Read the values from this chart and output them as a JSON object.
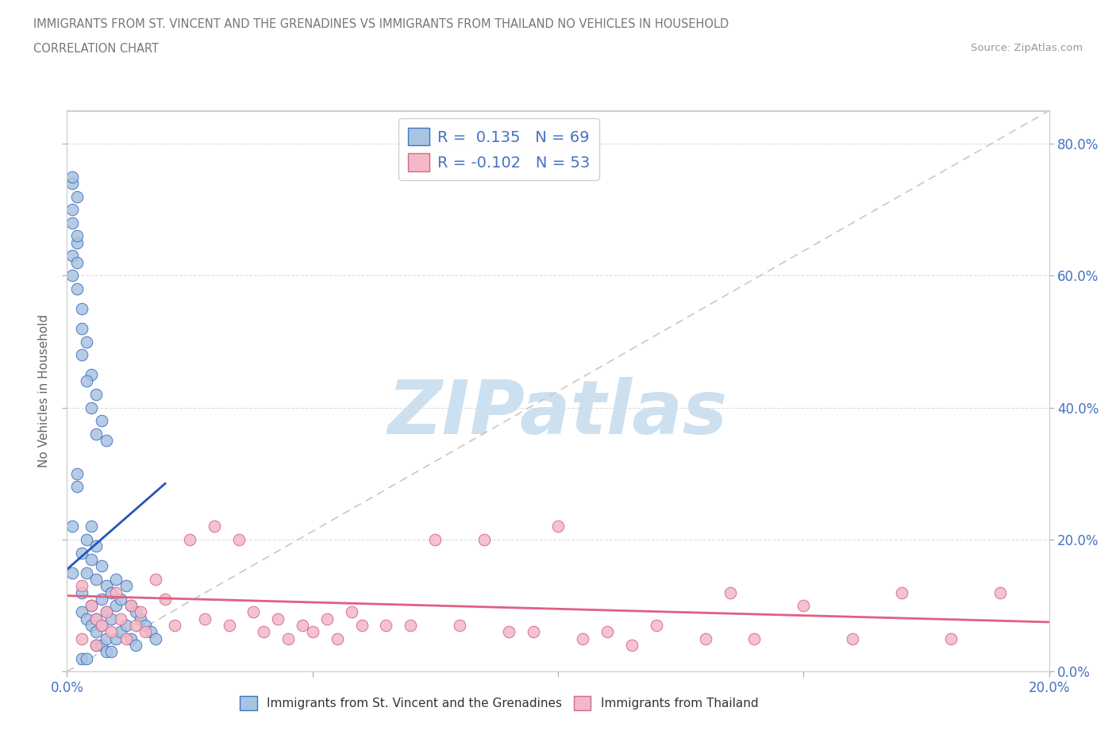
{
  "title_line1": "IMMIGRANTS FROM ST. VINCENT AND THE GRENADINES VS IMMIGRANTS FROM THAILAND NO VEHICLES IN HOUSEHOLD",
  "title_line2": "CORRELATION CHART",
  "source_text": "Source: ZipAtlas.com",
  "ylabel": "No Vehicles in Household",
  "x_min": 0.0,
  "x_max": 0.2,
  "y_min": 0.0,
  "y_max": 0.85,
  "x_ticks": [
    0.0,
    0.05,
    0.1,
    0.15,
    0.2
  ],
  "x_tick_labels": [
    "0.0%",
    "",
    "",
    "",
    "20.0%"
  ],
  "y_ticks": [
    0.0,
    0.2,
    0.4,
    0.6,
    0.8
  ],
  "y_tick_labels": [
    "0.0%",
    "20.0%",
    "40.0%",
    "60.0%",
    "80.0%"
  ],
  "blue_color": "#a8c4e0",
  "blue_edge_color": "#4472c4",
  "pink_color": "#f4b8c8",
  "pink_edge_color": "#d4688a",
  "blue_line_color": "#2255bb",
  "pink_line_color": "#e06080",
  "diagonal_color": "#c8c8c8",
  "R_blue": 0.135,
  "N_blue": 69,
  "R_pink": -0.102,
  "N_pink": 53,
  "watermark_text": "ZIPatlas",
  "watermark_color": "#cce0f0",
  "blue_line_x0": 0.0,
  "blue_line_y0": 0.155,
  "blue_line_x1": 0.02,
  "blue_line_y1": 0.285,
  "pink_line_x0": 0.0,
  "pink_line_y0": 0.115,
  "pink_line_x1": 0.2,
  "pink_line_y1": 0.075,
  "blue_scatter_x": [
    0.001,
    0.002,
    0.002,
    0.003,
    0.003,
    0.003,
    0.004,
    0.004,
    0.004,
    0.005,
    0.005,
    0.005,
    0.005,
    0.006,
    0.006,
    0.006,
    0.006,
    0.006,
    0.007,
    0.007,
    0.007,
    0.007,
    0.008,
    0.008,
    0.008,
    0.008,
    0.009,
    0.009,
    0.009,
    0.01,
    0.01,
    0.01,
    0.011,
    0.011,
    0.012,
    0.012,
    0.013,
    0.013,
    0.014,
    0.014,
    0.015,
    0.016,
    0.017,
    0.018,
    0.001,
    0.002,
    0.003,
    0.004,
    0.005,
    0.006,
    0.007,
    0.008,
    0.003,
    0.004,
    0.005,
    0.006,
    0.001,
    0.002,
    0.003,
    0.004,
    0.001,
    0.002,
    0.003,
    0.001,
    0.002,
    0.001,
    0.002,
    0.001,
    0.001
  ],
  "blue_scatter_y": [
    0.68,
    0.72,
    0.65,
    0.12,
    0.18,
    0.09,
    0.15,
    0.2,
    0.08,
    0.22,
    0.17,
    0.1,
    0.07,
    0.19,
    0.14,
    0.08,
    0.06,
    0.04,
    0.16,
    0.11,
    0.07,
    0.04,
    0.13,
    0.09,
    0.05,
    0.03,
    0.12,
    0.08,
    0.03,
    0.14,
    0.1,
    0.05,
    0.11,
    0.06,
    0.13,
    0.07,
    0.1,
    0.05,
    0.09,
    0.04,
    0.08,
    0.07,
    0.06,
    0.05,
    0.6,
    0.58,
    0.55,
    0.5,
    0.45,
    0.42,
    0.38,
    0.35,
    0.48,
    0.44,
    0.4,
    0.36,
    0.63,
    0.62,
    0.02,
    0.02,
    0.7,
    0.66,
    0.52,
    0.74,
    0.28,
    0.75,
    0.3,
    0.22,
    0.15
  ],
  "pink_scatter_x": [
    0.003,
    0.005,
    0.006,
    0.007,
    0.008,
    0.009,
    0.01,
    0.011,
    0.012,
    0.013,
    0.014,
    0.015,
    0.016,
    0.018,
    0.02,
    0.022,
    0.025,
    0.028,
    0.03,
    0.033,
    0.035,
    0.038,
    0.04,
    0.043,
    0.045,
    0.048,
    0.05,
    0.053,
    0.055,
    0.058,
    0.06,
    0.065,
    0.07,
    0.075,
    0.08,
    0.085,
    0.09,
    0.095,
    0.1,
    0.105,
    0.11,
    0.115,
    0.12,
    0.13,
    0.135,
    0.14,
    0.15,
    0.16,
    0.17,
    0.18,
    0.19,
    0.003,
    0.006
  ],
  "pink_scatter_y": [
    0.13,
    0.1,
    0.08,
    0.07,
    0.09,
    0.06,
    0.12,
    0.08,
    0.05,
    0.1,
    0.07,
    0.09,
    0.06,
    0.14,
    0.11,
    0.07,
    0.2,
    0.08,
    0.22,
    0.07,
    0.2,
    0.09,
    0.06,
    0.08,
    0.05,
    0.07,
    0.06,
    0.08,
    0.05,
    0.09,
    0.07,
    0.07,
    0.07,
    0.2,
    0.07,
    0.2,
    0.06,
    0.06,
    0.22,
    0.05,
    0.06,
    0.04,
    0.07,
    0.05,
    0.12,
    0.05,
    0.1,
    0.05,
    0.12,
    0.05,
    0.12,
    0.05,
    0.04
  ]
}
